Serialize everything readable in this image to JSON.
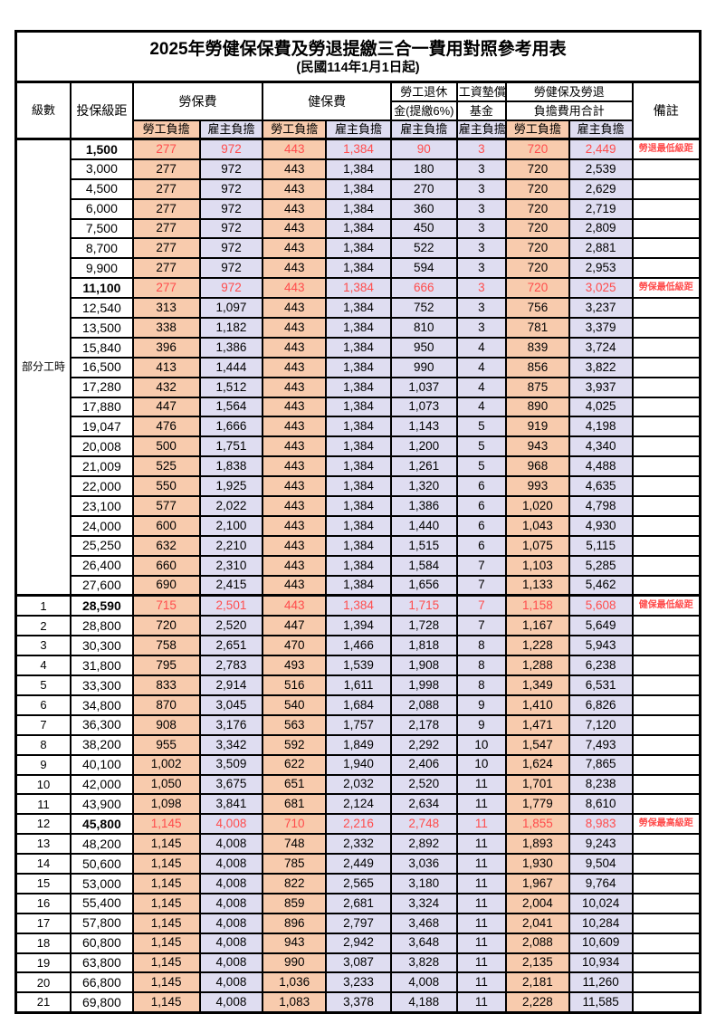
{
  "title": "2025年勞健保保費及勞退提繳三合一費用對照參考用表",
  "subtitle": "(民國114年1月1日起)",
  "colors": {
    "worker_fill": "#F8CBAD",
    "employer_fill": "#DFDDF1",
    "highlight_text": "#FF4C4C",
    "border": "#000000",
    "background": "#FFFFFF"
  },
  "header": {
    "level": "級數",
    "bracket": "投保級距",
    "labor_insurance": "勞保費",
    "health_insurance": "健保費",
    "pension_line1": "勞工退休",
    "pension_line2": "金(提繳6%)",
    "wage_fund_line1": "工資墊償",
    "wage_fund_line2": "基金",
    "total_line1": "勞健保及勞退",
    "total_line2": "負擔費用合計",
    "worker_burden": "勞工負擔",
    "employer_burden": "雇主負擔",
    "remark": "備註"
  },
  "part_time_label": "部分工時",
  "rows": [
    {
      "level": "",
      "bracket": "1,500",
      "liw": "277",
      "lie": "972",
      "hiw": "443",
      "hie": "1,384",
      "pension": "90",
      "fund": "3",
      "totw": "720",
      "tote": "2,449",
      "remark": "勞退最低級距",
      "hl": true
    },
    {
      "level": "",
      "bracket": "3,000",
      "liw": "277",
      "lie": "972",
      "hiw": "443",
      "hie": "1,384",
      "pension": "180",
      "fund": "3",
      "totw": "720",
      "tote": "2,539",
      "remark": "",
      "hl": false
    },
    {
      "level": "",
      "bracket": "4,500",
      "liw": "277",
      "lie": "972",
      "hiw": "443",
      "hie": "1,384",
      "pension": "270",
      "fund": "3",
      "totw": "720",
      "tote": "2,629",
      "remark": "",
      "hl": false
    },
    {
      "level": "",
      "bracket": "6,000",
      "liw": "277",
      "lie": "972",
      "hiw": "443",
      "hie": "1,384",
      "pension": "360",
      "fund": "3",
      "totw": "720",
      "tote": "2,719",
      "remark": "",
      "hl": false
    },
    {
      "level": "",
      "bracket": "7,500",
      "liw": "277",
      "lie": "972",
      "hiw": "443",
      "hie": "1,384",
      "pension": "450",
      "fund": "3",
      "totw": "720",
      "tote": "2,809",
      "remark": "",
      "hl": false
    },
    {
      "level": "",
      "bracket": "8,700",
      "liw": "277",
      "lie": "972",
      "hiw": "443",
      "hie": "1,384",
      "pension": "522",
      "fund": "3",
      "totw": "720",
      "tote": "2,881",
      "remark": "",
      "hl": false
    },
    {
      "level": "",
      "bracket": "9,900",
      "liw": "277",
      "lie": "972",
      "hiw": "443",
      "hie": "1,384",
      "pension": "594",
      "fund": "3",
      "totw": "720",
      "tote": "2,953",
      "remark": "",
      "hl": false
    },
    {
      "level": "",
      "bracket": "11,100",
      "liw": "277",
      "lie": "972",
      "hiw": "443",
      "hie": "1,384",
      "pension": "666",
      "fund": "3",
      "totw": "720",
      "tote": "3,025",
      "remark": "勞保最低級距",
      "hl": true
    },
    {
      "level": "",
      "bracket": "12,540",
      "liw": "313",
      "lie": "1,097",
      "hiw": "443",
      "hie": "1,384",
      "pension": "752",
      "fund": "3",
      "totw": "756",
      "tote": "3,237",
      "remark": "",
      "hl": false
    },
    {
      "level": "",
      "bracket": "13,500",
      "liw": "338",
      "lie": "1,182",
      "hiw": "443",
      "hie": "1,384",
      "pension": "810",
      "fund": "3",
      "totw": "781",
      "tote": "3,379",
      "remark": "",
      "hl": false
    },
    {
      "level": "",
      "bracket": "15,840",
      "liw": "396",
      "lie": "1,386",
      "hiw": "443",
      "hie": "1,384",
      "pension": "950",
      "fund": "4",
      "totw": "839",
      "tote": "3,724",
      "remark": "",
      "hl": false
    },
    {
      "level": "",
      "bracket": "16,500",
      "liw": "413",
      "lie": "1,444",
      "hiw": "443",
      "hie": "1,384",
      "pension": "990",
      "fund": "4",
      "totw": "856",
      "tote": "3,822",
      "remark": "",
      "hl": false
    },
    {
      "level": "",
      "bracket": "17,280",
      "liw": "432",
      "lie": "1,512",
      "hiw": "443",
      "hie": "1,384",
      "pension": "1,037",
      "fund": "4",
      "totw": "875",
      "tote": "3,937",
      "remark": "",
      "hl": false
    },
    {
      "level": "",
      "bracket": "17,880",
      "liw": "447",
      "lie": "1,564",
      "hiw": "443",
      "hie": "1,384",
      "pension": "1,073",
      "fund": "4",
      "totw": "890",
      "tote": "4,025",
      "remark": "",
      "hl": false
    },
    {
      "level": "",
      "bracket": "19,047",
      "liw": "476",
      "lie": "1,666",
      "hiw": "443",
      "hie": "1,384",
      "pension": "1,143",
      "fund": "5",
      "totw": "919",
      "tote": "4,198",
      "remark": "",
      "hl": false
    },
    {
      "level": "",
      "bracket": "20,008",
      "liw": "500",
      "lie": "1,751",
      "hiw": "443",
      "hie": "1,384",
      "pension": "1,200",
      "fund": "5",
      "totw": "943",
      "tote": "4,340",
      "remark": "",
      "hl": false
    },
    {
      "level": "",
      "bracket": "21,009",
      "liw": "525",
      "lie": "1,838",
      "hiw": "443",
      "hie": "1,384",
      "pension": "1,261",
      "fund": "5",
      "totw": "968",
      "tote": "4,488",
      "remark": "",
      "hl": false
    },
    {
      "level": "",
      "bracket": "22,000",
      "liw": "550",
      "lie": "1,925",
      "hiw": "443",
      "hie": "1,384",
      "pension": "1,320",
      "fund": "6",
      "totw": "993",
      "tote": "4,635",
      "remark": "",
      "hl": false
    },
    {
      "level": "",
      "bracket": "23,100",
      "liw": "577",
      "lie": "2,022",
      "hiw": "443",
      "hie": "1,384",
      "pension": "1,386",
      "fund": "6",
      "totw": "1,020",
      "tote": "4,798",
      "remark": "",
      "hl": false
    },
    {
      "level": "",
      "bracket": "24,000",
      "liw": "600",
      "lie": "2,100",
      "hiw": "443",
      "hie": "1,384",
      "pension": "1,440",
      "fund": "6",
      "totw": "1,043",
      "tote": "4,930",
      "remark": "",
      "hl": false
    },
    {
      "level": "",
      "bracket": "25,250",
      "liw": "632",
      "lie": "2,210",
      "hiw": "443",
      "hie": "1,384",
      "pension": "1,515",
      "fund": "6",
      "totw": "1,075",
      "tote": "5,115",
      "remark": "",
      "hl": false
    },
    {
      "level": "",
      "bracket": "26,400",
      "liw": "660",
      "lie": "2,310",
      "hiw": "443",
      "hie": "1,384",
      "pension": "1,584",
      "fund": "7",
      "totw": "1,103",
      "tote": "5,285",
      "remark": "",
      "hl": false
    },
    {
      "level": "",
      "bracket": "27,600",
      "liw": "690",
      "lie": "2,415",
      "hiw": "443",
      "hie": "1,384",
      "pension": "1,656",
      "fund": "7",
      "totw": "1,133",
      "tote": "5,462",
      "remark": "",
      "hl": false
    },
    {
      "level": "1",
      "bracket": "28,590",
      "liw": "715",
      "lie": "2,501",
      "hiw": "443",
      "hie": "1,384",
      "pension": "1,715",
      "fund": "7",
      "totw": "1,158",
      "tote": "5,608",
      "remark": "健保最低級距",
      "hl": true,
      "sep": true
    },
    {
      "level": "2",
      "bracket": "28,800",
      "liw": "720",
      "lie": "2,520",
      "hiw": "447",
      "hie": "1,394",
      "pension": "1,728",
      "fund": "7",
      "totw": "1,167",
      "tote": "5,649",
      "remark": "",
      "hl": false
    },
    {
      "level": "3",
      "bracket": "30,300",
      "liw": "758",
      "lie": "2,651",
      "hiw": "470",
      "hie": "1,466",
      "pension": "1,818",
      "fund": "8",
      "totw": "1,228",
      "tote": "5,943",
      "remark": "",
      "hl": false
    },
    {
      "level": "4",
      "bracket": "31,800",
      "liw": "795",
      "lie": "2,783",
      "hiw": "493",
      "hie": "1,539",
      "pension": "1,908",
      "fund": "8",
      "totw": "1,288",
      "tote": "6,238",
      "remark": "",
      "hl": false
    },
    {
      "level": "5",
      "bracket": "33,300",
      "liw": "833",
      "lie": "2,914",
      "hiw": "516",
      "hie": "1,611",
      "pension": "1,998",
      "fund": "8",
      "totw": "1,349",
      "tote": "6,531",
      "remark": "",
      "hl": false
    },
    {
      "level": "6",
      "bracket": "34,800",
      "liw": "870",
      "lie": "3,045",
      "hiw": "540",
      "hie": "1,684",
      "pension": "2,088",
      "fund": "9",
      "totw": "1,410",
      "tote": "6,826",
      "remark": "",
      "hl": false
    },
    {
      "level": "7",
      "bracket": "36,300",
      "liw": "908",
      "lie": "3,176",
      "hiw": "563",
      "hie": "1,757",
      "pension": "2,178",
      "fund": "9",
      "totw": "1,471",
      "tote": "7,120",
      "remark": "",
      "hl": false
    },
    {
      "level": "8",
      "bracket": "38,200",
      "liw": "955",
      "lie": "3,342",
      "hiw": "592",
      "hie": "1,849",
      "pension": "2,292",
      "fund": "10",
      "totw": "1,547",
      "tote": "7,493",
      "remark": "",
      "hl": false
    },
    {
      "level": "9",
      "bracket": "40,100",
      "liw": "1,002",
      "lie": "3,509",
      "hiw": "622",
      "hie": "1,940",
      "pension": "2,406",
      "fund": "10",
      "totw": "1,624",
      "tote": "7,865",
      "remark": "",
      "hl": false
    },
    {
      "level": "10",
      "bracket": "42,000",
      "liw": "1,050",
      "lie": "3,675",
      "hiw": "651",
      "hie": "2,032",
      "pension": "2,520",
      "fund": "11",
      "totw": "1,701",
      "tote": "8,238",
      "remark": "",
      "hl": false
    },
    {
      "level": "11",
      "bracket": "43,900",
      "liw": "1,098",
      "lie": "3,841",
      "hiw": "681",
      "hie": "2,124",
      "pension": "2,634",
      "fund": "11",
      "totw": "1,779",
      "tote": "8,610",
      "remark": "",
      "hl": false
    },
    {
      "level": "12",
      "bracket": "45,800",
      "liw": "1,145",
      "lie": "4,008",
      "hiw": "710",
      "hie": "2,216",
      "pension": "2,748",
      "fund": "11",
      "totw": "1,855",
      "tote": "8,983",
      "remark": "勞保最高級距",
      "hl": true
    },
    {
      "level": "13",
      "bracket": "48,200",
      "liw": "1,145",
      "lie": "4,008",
      "hiw": "748",
      "hie": "2,332",
      "pension": "2,892",
      "fund": "11",
      "totw": "1,893",
      "tote": "9,243",
      "remark": "",
      "hl": false
    },
    {
      "level": "14",
      "bracket": "50,600",
      "liw": "1,145",
      "lie": "4,008",
      "hiw": "785",
      "hie": "2,449",
      "pension": "3,036",
      "fund": "11",
      "totw": "1,930",
      "tote": "9,504",
      "remark": "",
      "hl": false
    },
    {
      "level": "15",
      "bracket": "53,000",
      "liw": "1,145",
      "lie": "4,008",
      "hiw": "822",
      "hie": "2,565",
      "pension": "3,180",
      "fund": "11",
      "totw": "1,967",
      "tote": "9,764",
      "remark": "",
      "hl": false
    },
    {
      "level": "16",
      "bracket": "55,400",
      "liw": "1,145",
      "lie": "4,008",
      "hiw": "859",
      "hie": "2,681",
      "pension": "3,324",
      "fund": "11",
      "totw": "2,004",
      "tote": "10,024",
      "remark": "",
      "hl": false
    },
    {
      "level": "17",
      "bracket": "57,800",
      "liw": "1,145",
      "lie": "4,008",
      "hiw": "896",
      "hie": "2,797",
      "pension": "3,468",
      "fund": "11",
      "totw": "2,041",
      "tote": "10,284",
      "remark": "",
      "hl": false
    },
    {
      "level": "18",
      "bracket": "60,800",
      "liw": "1,145",
      "lie": "4,008",
      "hiw": "943",
      "hie": "2,942",
      "pension": "3,648",
      "fund": "11",
      "totw": "2,088",
      "tote": "10,609",
      "remark": "",
      "hl": false
    },
    {
      "level": "19",
      "bracket": "63,800",
      "liw": "1,145",
      "lie": "4,008",
      "hiw": "990",
      "hie": "3,087",
      "pension": "3,828",
      "fund": "11",
      "totw": "2,135",
      "tote": "10,934",
      "remark": "",
      "hl": false
    },
    {
      "level": "20",
      "bracket": "66,800",
      "liw": "1,145",
      "lie": "4,008",
      "hiw": "1,036",
      "hie": "3,233",
      "pension": "4,008",
      "fund": "11",
      "totw": "2,181",
      "tote": "11,260",
      "remark": "",
      "hl": false
    },
    {
      "level": "21",
      "bracket": "69,800",
      "liw": "1,145",
      "lie": "4,008",
      "hiw": "1,083",
      "hie": "3,378",
      "pension": "4,188",
      "fund": "11",
      "totw": "2,228",
      "tote": "11,585",
      "remark": "",
      "hl": false
    }
  ]
}
